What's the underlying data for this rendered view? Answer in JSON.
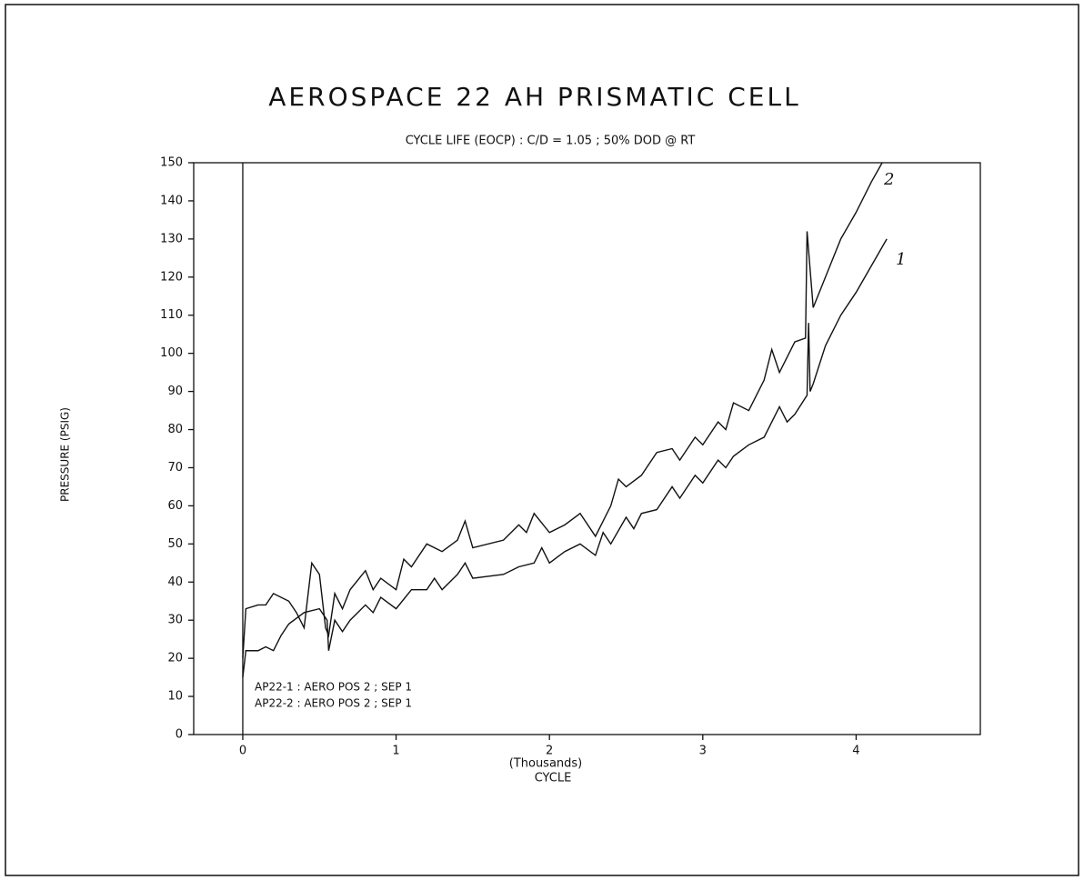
{
  "chart_data": {
    "type": "line",
    "title": "AEROSPACE 22 AH PRISMATIC CELL",
    "subtitle": "CYCLE LIFE (EOCP) : C/D = 1.05 ; 50% DOD @ RT",
    "y_label": "PRESSURE (PSIG)",
    "x_label": "CYCLE",
    "x_unit_label": "(Thousands)",
    "xlim": [
      -0.32,
      4.81
    ],
    "xticks": [
      0,
      1,
      2,
      3,
      4
    ],
    "ylim": [
      0,
      150
    ],
    "yticks": [
      0,
      10,
      20,
      30,
      40,
      50,
      60,
      70,
      80,
      90,
      100,
      110,
      120,
      130,
      140,
      150
    ],
    "annotations": [
      "1",
      "2"
    ],
    "series": [
      {
        "name": "AP22-1 : AERO POS 2 ; SEP 1",
        "color": "#111111",
        "x": [
          0.0,
          0.02,
          0.1,
          0.15,
          0.2,
          0.25,
          0.3,
          0.4,
          0.5,
          0.55,
          0.56,
          0.6,
          0.65,
          0.7,
          0.8,
          0.85,
          0.9,
          1.0,
          1.1,
          1.2,
          1.25,
          1.3,
          1.4,
          1.45,
          1.5,
          1.7,
          1.8,
          1.9,
          1.95,
          2.0,
          2.1,
          2.2,
          2.3,
          2.35,
          2.4,
          2.5,
          2.55,
          2.6,
          2.7,
          2.8,
          2.85,
          2.95,
          3.0,
          3.1,
          3.15,
          3.2,
          3.3,
          3.4,
          3.5,
          3.55,
          3.6,
          3.68,
          3.69,
          3.7,
          3.72,
          3.8,
          3.9,
          4.0,
          4.1,
          4.2
        ],
        "values": [
          15,
          22,
          22,
          23,
          22,
          26,
          29,
          32,
          33,
          30,
          22,
          30,
          27,
          30,
          34,
          32,
          36,
          33,
          38,
          38,
          41,
          38,
          42,
          45,
          41,
          42,
          44,
          45,
          49,
          45,
          48,
          50,
          47,
          53,
          50,
          57,
          54,
          58,
          59,
          65,
          62,
          68,
          66,
          72,
          70,
          73,
          76,
          78,
          86,
          82,
          84,
          89,
          108,
          90,
          92,
          102,
          110,
          116,
          123,
          130
        ]
      },
      {
        "name": "AP22-2 : AERO POS 2 ; SEP 1",
        "color": "#111111",
        "x": [
          0.0,
          0.02,
          0.1,
          0.15,
          0.2,
          0.3,
          0.35,
          0.4,
          0.45,
          0.5,
          0.54,
          0.56,
          0.6,
          0.65,
          0.7,
          0.8,
          0.85,
          0.9,
          1.0,
          1.05,
          1.1,
          1.2,
          1.3,
          1.4,
          1.45,
          1.5,
          1.7,
          1.8,
          1.85,
          1.9,
          2.0,
          2.1,
          2.2,
          2.3,
          2.4,
          2.45,
          2.5,
          2.6,
          2.7,
          2.8,
          2.85,
          2.95,
          3.0,
          3.1,
          3.15,
          3.2,
          3.3,
          3.4,
          3.45,
          3.5,
          3.6,
          3.67,
          3.68,
          3.72,
          3.8,
          3.9,
          4.0,
          4.1,
          4.17
        ],
        "values": [
          20,
          33,
          34,
          34,
          37,
          35,
          32,
          28,
          45,
          42,
          28,
          26,
          37,
          33,
          38,
          43,
          38,
          41,
          38,
          46,
          44,
          50,
          48,
          51,
          56,
          49,
          51,
          55,
          53,
          58,
          53,
          55,
          58,
          52,
          60,
          67,
          65,
          68,
          74,
          75,
          72,
          78,
          76,
          82,
          80,
          87,
          85,
          93,
          101,
          95,
          103,
          104,
          132,
          112,
          120,
          130,
          137,
          145,
          150
        ]
      }
    ]
  }
}
